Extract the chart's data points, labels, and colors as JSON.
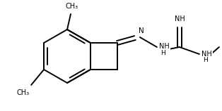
{
  "bg_color": "#ffffff",
  "line_color": "#000000",
  "line_width": 1.4,
  "font_size": 7.0,
  "fig_width": 3.14,
  "fig_height": 1.58,
  "dpi": 100,
  "xlim": [
    0,
    314
  ],
  "ylim": [
    0,
    158
  ]
}
